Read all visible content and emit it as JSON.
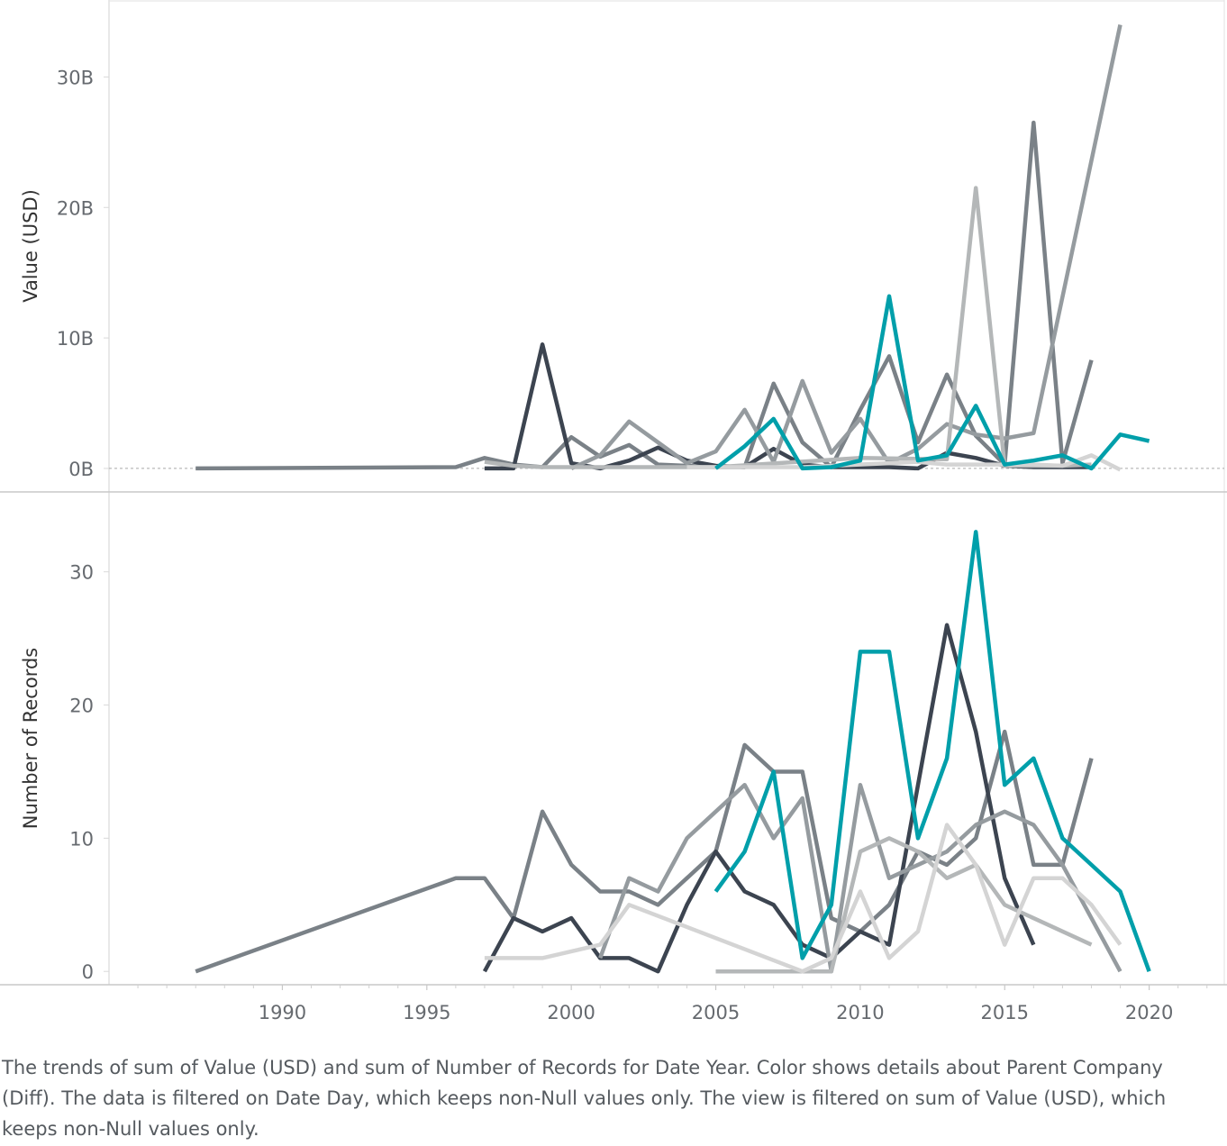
{
  "caption": "The trends of sum of Value (USD) and sum of Number of Records for Date Year.  Color shows details about Parent Company (Diff). The data is filtered on Date Day, which keeps non-Null values only. The view is filtered on sum of Value (USD), which keeps non-Null values only.",
  "chart_data": [
    {
      "type": "line",
      "ylabel": "Value (USD)",
      "y_ticks": [
        {
          "value": 0,
          "label": "0B"
        },
        {
          "value": 10,
          "label": "10B"
        },
        {
          "value": 20,
          "label": "20B"
        },
        {
          "value": 30,
          "label": "30B"
        }
      ],
      "ylim": [
        -1.8,
        35.9
      ],
      "zero_reference_line": true,
      "series": [
        {
          "color": "#7a8187",
          "points": [
            [
              1987,
              0
            ],
            [
              1996,
              0.1
            ],
            [
              1997,
              0.8
            ],
            [
              1998,
              0.3
            ],
            [
              1999,
              0.1
            ],
            [
              2000,
              2.4
            ],
            [
              2001,
              0.9
            ],
            [
              2002,
              1.8
            ],
            [
              2003,
              0.3
            ],
            [
              2004,
              0.2
            ],
            [
              2005,
              0.1
            ],
            [
              2006,
              0.1
            ],
            [
              2007,
              6.5
            ],
            [
              2008,
              2.0
            ],
            [
              2009,
              0.1
            ],
            [
              2010,
              4.5
            ],
            [
              2011,
              8.6
            ],
            [
              2012,
              2.0
            ],
            [
              2013,
              7.2
            ],
            [
              2014,
              2.5
            ],
            [
              2015,
              0.3
            ],
            [
              2016,
              26.5
            ],
            [
              2017,
              0.4
            ],
            [
              2018,
              8.3
            ]
          ]
        },
        {
          "color": "#3c4450",
          "points": [
            [
              1997,
              0
            ],
            [
              1998,
              0
            ],
            [
              1999,
              9.5
            ],
            [
              2000,
              0.4
            ],
            [
              2001,
              0
            ],
            [
              2002,
              0.6
            ],
            [
              2003,
              1.6
            ],
            [
              2004,
              0.6
            ],
            [
              2005,
              0.2
            ],
            [
              2006,
              0.1
            ],
            [
              2007,
              1.5
            ],
            [
              2008,
              0.3
            ],
            [
              2009,
              0.1
            ],
            [
              2010,
              0.1
            ],
            [
              2011,
              0.1
            ],
            [
              2012,
              0
            ],
            [
              2013,
              1.2
            ],
            [
              2014,
              0.8
            ],
            [
              2015,
              0.2
            ],
            [
              2016,
              0.1
            ],
            [
              2017,
              0.1
            ],
            [
              2018,
              0.1
            ]
          ]
        },
        {
          "color": "#959b9f",
          "points": [
            [
              2000,
              0
            ],
            [
              2001,
              1.0
            ],
            [
              2002,
              3.6
            ],
            [
              2003,
              2.0
            ],
            [
              2004,
              0.4
            ],
            [
              2005,
              1.3
            ],
            [
              2006,
              4.5
            ],
            [
              2007,
              0.5
            ],
            [
              2008,
              6.7
            ],
            [
              2009,
              1.2
            ],
            [
              2010,
              3.8
            ],
            [
              2011,
              0.4
            ],
            [
              2012,
              1.5
            ],
            [
              2013,
              3.4
            ],
            [
              2014,
              2.6
            ],
            [
              2015,
              2.3
            ],
            [
              2016,
              2.7
            ],
            [
              2019,
              34.0
            ]
          ]
        },
        {
          "color": "#b4b7b8",
          "points": [
            [
              1997,
              0.5
            ],
            [
              1998,
              0.2
            ],
            [
              1999,
              0.1
            ],
            [
              2000,
              0.1
            ],
            [
              2005,
              0.1
            ],
            [
              2010,
              0.8
            ],
            [
              2013,
              0.7
            ],
            [
              2014,
              21.5
            ],
            [
              2015,
              0.2
            ],
            [
              2017,
              0.2
            ],
            [
              2018,
              0.3
            ]
          ]
        },
        {
          "color": "#d4d4d4",
          "points": [
            [
              2004,
              0.1
            ],
            [
              2008,
              0.1
            ],
            [
              2012,
              0.5
            ],
            [
              2013,
              0.3
            ],
            [
              2016,
              0.3
            ],
            [
              2017,
              0.2
            ],
            [
              2018,
              1.0
            ],
            [
              2019,
              -0.1
            ]
          ]
        },
        {
          "color": "#009faa",
          "points": [
            [
              2005,
              0
            ],
            [
              2006,
              1.7
            ],
            [
              2007,
              3.8
            ],
            [
              2008,
              0
            ],
            [
              2009,
              0.1
            ],
            [
              2010,
              0.6
            ],
            [
              2011,
              13.2
            ],
            [
              2012,
              0.6
            ],
            [
              2013,
              1.0
            ],
            [
              2014,
              4.8
            ],
            [
              2015,
              0.3
            ],
            [
              2016,
              0.6
            ],
            [
              2017,
              1.0
            ],
            [
              2018,
              0
            ],
            [
              2019,
              2.6
            ],
            [
              2020,
              2.1
            ]
          ]
        }
      ]
    },
    {
      "type": "line",
      "ylabel": "Number of Records",
      "y_ticks": [
        {
          "value": 0,
          "label": "0"
        },
        {
          "value": 10,
          "label": "10"
        },
        {
          "value": 20,
          "label": "20"
        },
        {
          "value": 30,
          "label": "30"
        }
      ],
      "ylim": [
        -1,
        36
      ],
      "series": [
        {
          "color": "#7a8187",
          "points": [
            [
              1987,
              0
            ],
            [
              1996,
              7
            ],
            [
              1997,
              7
            ],
            [
              1998,
              4
            ],
            [
              1999,
              12
            ],
            [
              2000,
              8
            ],
            [
              2001,
              6
            ],
            [
              2002,
              6
            ],
            [
              2003,
              5
            ],
            [
              2004,
              7
            ],
            [
              2005,
              9
            ],
            [
              2006,
              17
            ],
            [
              2007,
              15
            ],
            [
              2008,
              15
            ],
            [
              2009,
              4
            ],
            [
              2010,
              3
            ],
            [
              2011,
              5
            ],
            [
              2012,
              9
            ],
            [
              2013,
              8
            ],
            [
              2014,
              10
            ],
            [
              2015,
              18
            ],
            [
              2016,
              8
            ],
            [
              2017,
              8
            ],
            [
              2018,
              16
            ]
          ]
        },
        {
          "color": "#3c4450",
          "points": [
            [
              1997,
              0
            ],
            [
              1998,
              4
            ],
            [
              1999,
              3
            ],
            [
              2000,
              4
            ],
            [
              2001,
              1
            ],
            [
              2002,
              1
            ],
            [
              2003,
              0
            ],
            [
              2004,
              5
            ],
            [
              2005,
              9
            ],
            [
              2006,
              6
            ],
            [
              2007,
              5
            ],
            [
              2008,
              2
            ],
            [
              2009,
              1
            ],
            [
              2010,
              3
            ],
            [
              2011,
              2
            ],
            [
              2012,
              14
            ],
            [
              2013,
              26
            ],
            [
              2014,
              18
            ],
            [
              2015,
              7
            ],
            [
              2016,
              2
            ]
          ]
        },
        {
          "color": "#959b9f",
          "points": [
            [
              2001,
              1
            ],
            [
              2002,
              7
            ],
            [
              2003,
              6
            ],
            [
              2004,
              10
            ],
            [
              2005,
              12
            ],
            [
              2006,
              14
            ],
            [
              2007,
              10
            ],
            [
              2008,
              13
            ],
            [
              2009,
              0
            ],
            [
              2010,
              14
            ],
            [
              2011,
              7
            ],
            [
              2012,
              8
            ],
            [
              2013,
              9
            ],
            [
              2014,
              11
            ],
            [
              2015,
              12
            ],
            [
              2016,
              11
            ],
            [
              2017,
              8
            ],
            [
              2018,
              4
            ],
            [
              2019,
              0
            ]
          ]
        },
        {
          "color": "#b4b7b8",
          "points": [
            [
              2005,
              0
            ],
            [
              2009,
              0
            ],
            [
              2010,
              9
            ],
            [
              2011,
              10
            ],
            [
              2012,
              9
            ],
            [
              2013,
              7
            ],
            [
              2014,
              8
            ],
            [
              2015,
              5
            ],
            [
              2018,
              2
            ]
          ]
        },
        {
          "color": "#d4d4d4",
          "points": [
            [
              1997,
              1
            ],
            [
              1998,
              1
            ],
            [
              1999,
              1
            ],
            [
              2001,
              2
            ],
            [
              2002,
              5
            ],
            [
              2008,
              0
            ],
            [
              2009,
              1
            ],
            [
              2010,
              6
            ],
            [
              2011,
              1
            ],
            [
              2012,
              3
            ],
            [
              2013,
              11
            ],
            [
              2014,
              8
            ],
            [
              2015,
              2
            ],
            [
              2016,
              7
            ],
            [
              2017,
              7
            ],
            [
              2018,
              5
            ],
            [
              2019,
              2
            ]
          ]
        },
        {
          "color": "#009faa",
          "points": [
            [
              2005,
              6
            ],
            [
              2006,
              9
            ],
            [
              2007,
              15
            ],
            [
              2008,
              1
            ],
            [
              2009,
              5
            ],
            [
              2010,
              24
            ],
            [
              2011,
              24
            ],
            [
              2012,
              10
            ],
            [
              2013,
              16
            ],
            [
              2014,
              33
            ],
            [
              2015,
              14
            ],
            [
              2016,
              16
            ],
            [
              2017,
              10
            ],
            [
              2018,
              8
            ],
            [
              2019,
              6
            ],
            [
              2020,
              0
            ]
          ]
        }
      ]
    }
  ],
  "x_axis": {
    "xlim": [
      1984,
      2022.6
    ],
    "ticks": [
      {
        "value": 1990,
        "label": "1990"
      },
      {
        "value": 1995,
        "label": "1995"
      },
      {
        "value": 2000,
        "label": "2000"
      },
      {
        "value": 2005,
        "label": "2005"
      },
      {
        "value": 2010,
        "label": "2010"
      },
      {
        "value": 2015,
        "label": "2015"
      },
      {
        "value": 2020,
        "label": "2020"
      }
    ],
    "minor_ticks": [
      1985,
      1986,
      1987,
      1988,
      1989,
      1991,
      1992,
      1993,
      1994,
      1996,
      1997,
      1998,
      1999,
      2001,
      2002,
      2003,
      2004,
      2006,
      2007,
      2008,
      2009,
      2011,
      2012,
      2013,
      2014,
      2016,
      2017,
      2018,
      2019,
      2021,
      2022
    ]
  }
}
